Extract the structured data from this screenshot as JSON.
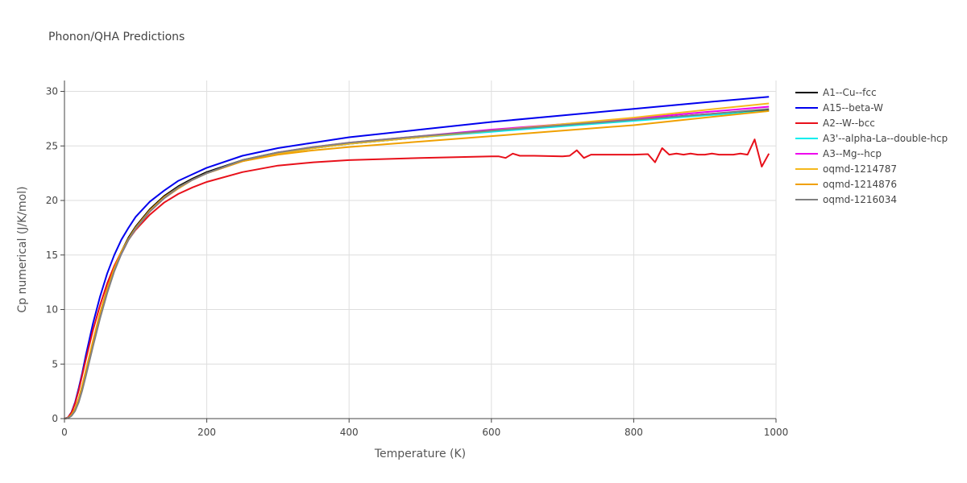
{
  "chart_data": {
    "type": "line",
    "title": "Phonon/QHA Predictions",
    "xlabel": "Temperature (K)",
    "ylabel": "Cp numerical (J/K/mol)",
    "xlim": [
      0,
      1000
    ],
    "ylim": [
      0,
      31
    ],
    "xticks": [
      0,
      200,
      400,
      600,
      800,
      1000
    ],
    "yticks": [
      0,
      5,
      10,
      15,
      20,
      25,
      30
    ],
    "grid": true,
    "legend_position": "right",
    "series": [
      {
        "name": "A1--Cu--fcc",
        "color": "#000000",
        "x": [
          0,
          5,
          10,
          15,
          20,
          25,
          30,
          40,
          50,
          60,
          70,
          80,
          90,
          100,
          120,
          140,
          160,
          180,
          200,
          250,
          300,
          350,
          400,
          500,
          600,
          700,
          800,
          900,
          990
        ],
        "y": [
          0,
          0.05,
          0.35,
          0.9,
          1.8,
          3.0,
          4.3,
          7.0,
          9.6,
          11.9,
          13.8,
          15.3,
          16.6,
          17.6,
          19.2,
          20.4,
          21.3,
          22.0,
          22.6,
          23.7,
          24.4,
          24.8,
          25.2,
          25.8,
          26.4,
          26.9,
          27.4,
          27.9,
          28.3
        ]
      },
      {
        "name": "A15--beta-W",
        "color": "#0000ee",
        "x": [
          0,
          5,
          10,
          15,
          20,
          25,
          30,
          40,
          50,
          60,
          70,
          80,
          90,
          100,
          120,
          140,
          160,
          180,
          200,
          250,
          300,
          350,
          400,
          500,
          600,
          700,
          800,
          900,
          990
        ],
        "y": [
          0,
          0.1,
          0.6,
          1.5,
          2.8,
          4.2,
          5.8,
          8.7,
          11.2,
          13.3,
          15.0,
          16.4,
          17.5,
          18.5,
          19.9,
          20.9,
          21.8,
          22.4,
          23.0,
          24.1,
          24.8,
          25.3,
          25.8,
          26.5,
          27.2,
          27.8,
          28.4,
          29.0,
          29.5
        ]
      },
      {
        "name": "A2--W--bcc",
        "color": "#e8101a",
        "x": [
          0,
          5,
          10,
          15,
          20,
          25,
          30,
          40,
          50,
          60,
          70,
          80,
          90,
          100,
          120,
          140,
          160,
          180,
          200,
          250,
          300,
          350,
          400,
          500,
          600,
          610,
          620,
          630,
          640,
          660,
          700,
          710,
          720,
          730,
          740,
          780,
          800,
          820,
          830,
          840,
          850,
          860,
          870,
          880,
          890,
          900,
          910,
          920,
          930,
          940,
          950,
          960,
          970,
          980,
          990
        ],
        "y": [
          0,
          0.1,
          0.55,
          1.4,
          2.6,
          4.0,
          5.4,
          8.1,
          10.4,
          12.4,
          14.0,
          15.3,
          16.4,
          17.3,
          18.7,
          19.8,
          20.6,
          21.2,
          21.7,
          22.6,
          23.2,
          23.5,
          23.7,
          23.9,
          24.05,
          24.05,
          23.9,
          24.3,
          24.1,
          24.1,
          24.05,
          24.1,
          24.6,
          23.9,
          24.2,
          24.2,
          24.2,
          24.25,
          23.5,
          24.8,
          24.2,
          24.3,
          24.2,
          24.3,
          24.2,
          24.2,
          24.3,
          24.2,
          24.2,
          24.2,
          24.3,
          24.2,
          25.6,
          23.1,
          24.3
        ]
      },
      {
        "name": "A3'--alpha-La--double-hcp",
        "color": "#00eeee",
        "x": [
          0,
          5,
          10,
          15,
          20,
          25,
          30,
          40,
          50,
          60,
          70,
          80,
          90,
          100,
          120,
          140,
          160,
          180,
          200,
          250,
          300,
          350,
          400,
          500,
          600,
          700,
          800,
          900,
          990
        ],
        "y": [
          0,
          0.05,
          0.3,
          0.8,
          1.7,
          2.8,
          4.1,
          6.8,
          9.4,
          11.7,
          13.6,
          15.1,
          16.4,
          17.4,
          19.0,
          20.2,
          21.1,
          21.9,
          22.5,
          23.6,
          24.3,
          24.8,
          25.2,
          25.8,
          26.3,
          26.8,
          27.3,
          27.8,
          28.2
        ]
      },
      {
        "name": "A3--Mg--hcp",
        "color": "#ee00ee",
        "x": [
          0,
          5,
          10,
          15,
          20,
          25,
          30,
          40,
          50,
          60,
          70,
          80,
          90,
          100,
          120,
          140,
          160,
          180,
          200,
          250,
          300,
          350,
          400,
          500,
          600,
          700,
          800,
          900,
          990
        ],
        "y": [
          0,
          0.05,
          0.3,
          0.8,
          1.7,
          2.8,
          4.1,
          6.8,
          9.4,
          11.7,
          13.6,
          15.1,
          16.4,
          17.4,
          19.0,
          20.2,
          21.1,
          21.9,
          22.5,
          23.6,
          24.4,
          24.9,
          25.3,
          25.9,
          26.5,
          27.0,
          27.5,
          28.1,
          28.6
        ]
      },
      {
        "name": "oqmd-1214787",
        "color": "#f5b81c",
        "x": [
          0,
          5,
          10,
          15,
          20,
          25,
          30,
          40,
          50,
          60,
          70,
          80,
          90,
          100,
          120,
          140,
          160,
          180,
          200,
          250,
          300,
          350,
          400,
          500,
          600,
          700,
          800,
          900,
          990
        ],
        "y": [
          0,
          0.05,
          0.35,
          0.9,
          1.8,
          3.0,
          4.3,
          7.0,
          9.5,
          11.8,
          13.7,
          15.2,
          16.4,
          17.4,
          19.0,
          20.2,
          21.1,
          21.9,
          22.5,
          23.6,
          24.3,
          24.8,
          25.2,
          25.8,
          26.4,
          27.0,
          27.6,
          28.3,
          28.9
        ]
      },
      {
        "name": "oqmd-1214876",
        "color": "#f0a000",
        "x": [
          0,
          5,
          10,
          15,
          20,
          25,
          30,
          40,
          50,
          60,
          70,
          80,
          90,
          100,
          120,
          140,
          160,
          180,
          200,
          250,
          300,
          350,
          400,
          500,
          600,
          700,
          800,
          900,
          990
        ],
        "y": [
          0,
          0.05,
          0.35,
          0.9,
          1.8,
          3.0,
          4.4,
          7.1,
          9.7,
          11.9,
          13.8,
          15.3,
          16.5,
          17.5,
          19.1,
          20.3,
          21.2,
          21.9,
          22.5,
          23.6,
          24.2,
          24.6,
          24.9,
          25.4,
          25.9,
          26.4,
          26.9,
          27.6,
          28.2
        ]
      },
      {
        "name": "oqmd-1216034",
        "color": "#808080",
        "x": [
          0,
          5,
          10,
          15,
          20,
          25,
          30,
          40,
          50,
          60,
          70,
          80,
          90,
          100,
          120,
          140,
          160,
          180,
          200,
          250,
          300,
          350,
          400,
          500,
          600,
          700,
          800,
          900,
          990
        ],
        "y": [
          0,
          0.05,
          0.25,
          0.7,
          1.5,
          2.6,
          3.9,
          6.6,
          9.2,
          11.5,
          13.5,
          15.1,
          16.4,
          17.4,
          19.0,
          20.2,
          21.2,
          21.9,
          22.5,
          23.7,
          24.4,
          24.9,
          25.3,
          25.9,
          26.4,
          26.9,
          27.4,
          27.9,
          28.4
        ]
      }
    ]
  }
}
